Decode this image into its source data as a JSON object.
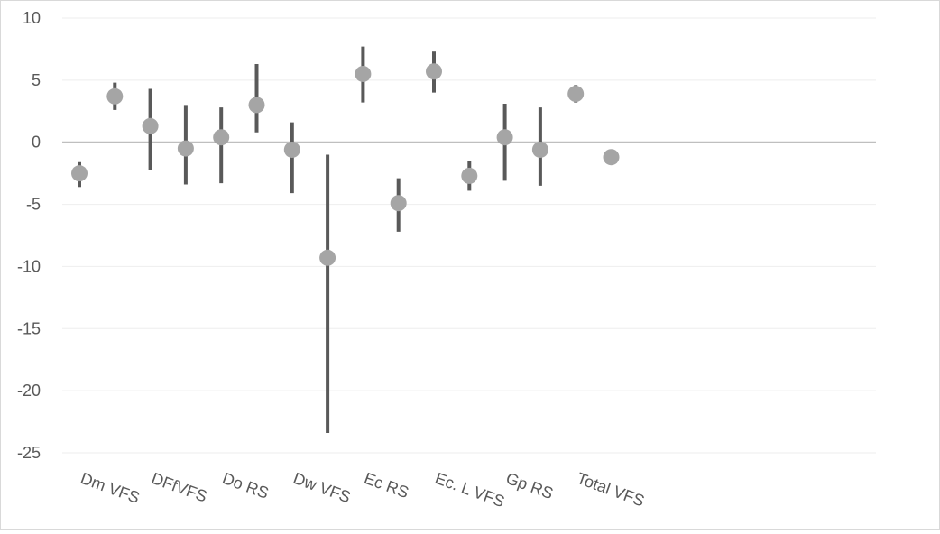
{
  "chart_data": {
    "type": "scatter",
    "title": "",
    "xlabel": "",
    "ylabel": "",
    "ylim": [
      -25,
      10
    ],
    "y_ticks": [
      10,
      5,
      0,
      -5,
      -10,
      -15,
      -20,
      -25
    ],
    "y_tick_labels": [
      "10",
      "5",
      "0",
      "-5",
      "-10",
      "-15",
      "-20",
      "-25"
    ],
    "grid": true,
    "legend": "none",
    "colors": {
      "point": "#a5a5a5",
      "error_bar": "#595959",
      "zero_line": "#bfbfbf",
      "gridline": "#eeeeee",
      "tick_label": "#595959",
      "frame": "#d9d9d9"
    },
    "category_labels": [
      "Dm VFS",
      "DFfVFS",
      "Do RS",
      "Dw VFS",
      "Ec RS",
      "Ec. L VFS",
      "Gp RS",
      "Total VFS"
    ],
    "points": [
      {
        "value": -2.5,
        "low": -3.6,
        "high": -1.6
      },
      {
        "value": 3.7,
        "low": 2.6,
        "high": 4.8
      },
      {
        "value": 1.3,
        "low": -2.2,
        "high": 4.3
      },
      {
        "value": -0.5,
        "low": -3.4,
        "high": 3.0
      },
      {
        "value": 0.4,
        "low": -3.3,
        "high": 2.8
      },
      {
        "value": 3.0,
        "low": 0.8,
        "high": 6.3
      },
      {
        "value": -0.6,
        "low": -4.1,
        "high": 1.6
      },
      {
        "value": -9.3,
        "low": -23.4,
        "high": -1.0
      },
      {
        "value": 5.5,
        "low": 3.2,
        "high": 7.7
      },
      {
        "value": -4.9,
        "low": -7.2,
        "high": -2.9
      },
      {
        "value": 5.7,
        "low": 4.0,
        "high": 7.3
      },
      {
        "value": -2.7,
        "low": -3.9,
        "high": -1.5
      },
      {
        "value": 0.4,
        "low": -3.1,
        "high": 3.1
      },
      {
        "value": -0.6,
        "low": -3.5,
        "high": 2.8
      },
      {
        "value": 3.9,
        "low": 3.2,
        "high": 4.6
      },
      {
        "value": -1.2,
        "low": -1.2,
        "high": -1.2
      }
    ]
  }
}
